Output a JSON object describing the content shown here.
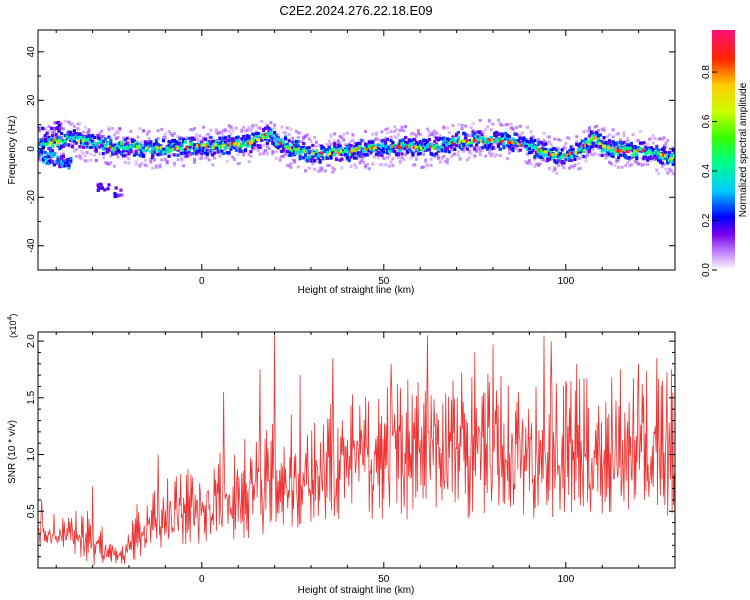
{
  "title": "C2E2.2024.276.22.18.E09",
  "chart_data": [
    {
      "type": "heatmap",
      "xlabel": "Height of straight line (km)",
      "ylabel": "Frequency (Hz)",
      "xlim": [
        -45,
        130
      ],
      "ylim": [
        -50,
        49
      ],
      "x_ticks": [
        0,
        50,
        100
      ],
      "y_ticks": [
        -40,
        -20,
        0,
        20,
        40
      ],
      "colorbar": {
        "label": "Normalized spectral amplitude",
        "range": [
          0.0,
          0.97
        ],
        "ticks": [
          0.0,
          0.2,
          0.4,
          0.6,
          0.8
        ],
        "colors": [
          "#ffffff",
          "#cc99ff",
          "#7700ee",
          "#0000ff",
          "#00ccff",
          "#00ff88",
          "#33ff00",
          "#ccff00",
          "#ffcc00",
          "#ff2200",
          "#ff1177"
        ]
      },
      "ridge": {
        "x": [
          -45,
          -40,
          -35,
          -30,
          -25,
          -20,
          -15,
          -10,
          -5,
          0,
          5,
          10,
          15,
          18,
          20,
          25,
          30,
          35,
          40,
          45,
          50,
          55,
          60,
          65,
          70,
          75,
          80,
          85,
          90,
          95,
          100,
          105,
          108,
          110,
          115,
          120,
          125,
          130
        ],
        "y": [
          2,
          3,
          4,
          2,
          1,
          1,
          0,
          0,
          1,
          1,
          1,
          2,
          3,
          6,
          4,
          0,
          -2,
          -2,
          -1,
          0,
          1,
          1,
          0,
          1,
          3,
          3,
          4,
          3,
          1,
          -2,
          -3,
          0,
          5,
          1,
          -1,
          -1,
          -2,
          -4
        ]
      },
      "side_branch": {
        "x": [
          -45,
          -42,
          -39,
          -36
        ],
        "y": [
          -2,
          -4,
          -5,
          -6
        ]
      },
      "blobs": [
        {
          "x": -27,
          "y": -16
        },
        {
          "x": -23,
          "y": -18
        },
        {
          "x": -45,
          "y": 7
        },
        {
          "x": -40,
          "y": 9
        }
      ]
    },
    {
      "type": "line",
      "xlabel": "Height of straight line (km)",
      "ylabel": "SNR (10 * v/v)",
      "y_multiplier": "(x10",
      "y_multiplier_exp": "4",
      "y_multiplier_close": ")",
      "xlim": [
        -45,
        130
      ],
      "ylim": [
        0,
        2.08
      ],
      "x_ticks": [
        0,
        50,
        100
      ],
      "y_ticks": [
        0.5,
        1.0,
        1.5,
        2.0
      ],
      "y_tick_labels": [
        "0.5",
        "1.0",
        "1.5",
        "2.0"
      ],
      "color": "#ee3333",
      "series": [
        {
          "envelope": {
            "x": [
              -45,
              -35,
              -30,
              -26,
              -22,
              -18,
              -10,
              0,
              10,
              20,
              30,
              40,
              50,
              60,
              70,
              80,
              90,
              100,
              110,
              120,
              130
            ],
            "mean": [
              0.3,
              0.3,
              0.25,
              0.15,
              0.1,
              0.3,
              0.45,
              0.55,
              0.65,
              0.75,
              0.85,
              0.95,
              1.0,
              1.05,
              1.05,
              1.05,
              1.0,
              1.0,
              1.0,
              1.05,
              1.05
            ],
            "amp": [
              0.12,
              0.15,
              0.2,
              0.1,
              0.08,
              0.2,
              0.25,
              0.3,
              0.35,
              0.4,
              0.45,
              0.45,
              0.5,
              0.55,
              0.55,
              0.5,
              0.5,
              0.5,
              0.5,
              0.5,
              0.55
            ]
          },
          "spikes": [
            {
              "x": -44,
              "y": 0.6
            },
            {
              "x": -30,
              "y": 0.72
            },
            {
              "x": -12,
              "y": 1.0
            },
            {
              "x": 6,
              "y": 1.55
            },
            {
              "x": 16,
              "y": 1.75
            },
            {
              "x": 20,
              "y": 2.05
            },
            {
              "x": 27,
              "y": 1.7
            },
            {
              "x": 36,
              "y": 1.85
            },
            {
              "x": 52,
              "y": 1.8
            },
            {
              "x": 62,
              "y": 2.05
            },
            {
              "x": 75,
              "y": 1.9
            },
            {
              "x": 80,
              "y": 1.97
            },
            {
              "x": 94,
              "y": 2.05
            },
            {
              "x": 96,
              "y": 2.0
            },
            {
              "x": 100,
              "y": 1.65
            },
            {
              "x": 103,
              "y": 1.8
            },
            {
              "x": 115,
              "y": 1.75
            },
            {
              "x": 120,
              "y": 1.8
            },
            {
              "x": 125,
              "y": 1.85
            },
            {
              "x": 129,
              "y": 1.75
            }
          ]
        }
      ]
    }
  ]
}
